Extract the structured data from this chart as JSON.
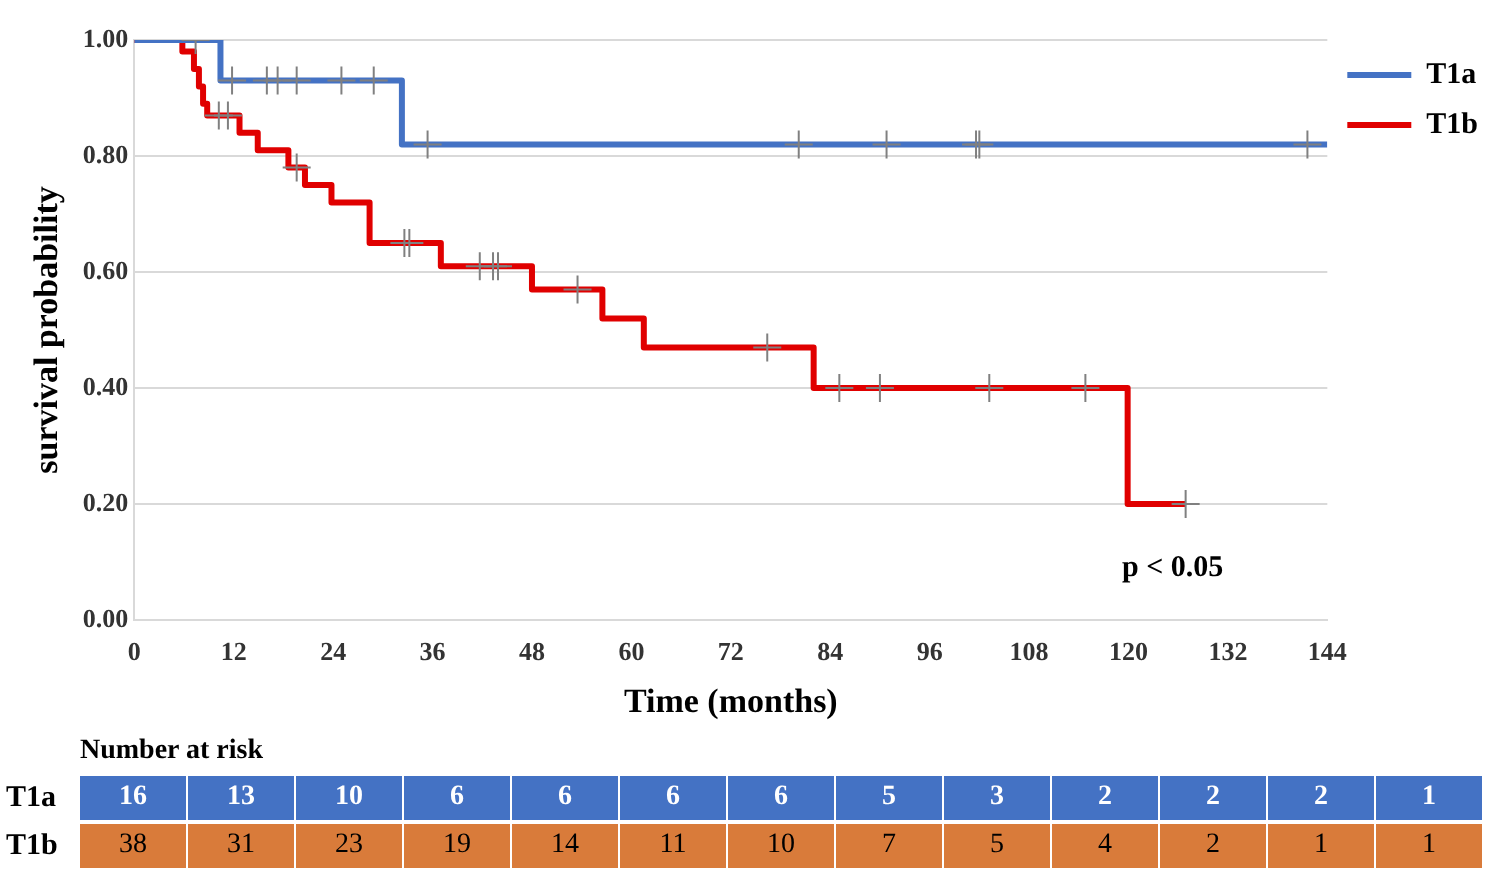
{
  "chart_data": [
    {
      "type": "step",
      "xlabel": "Time (months)",
      "ylabel": "survival probability",
      "xlim": [
        0,
        144
      ],
      "xticks": [
        0,
        12,
        24,
        36,
        48,
        60,
        72,
        84,
        96,
        108,
        120,
        132,
        144
      ],
      "ylim": [
        0,
        1
      ],
      "yticks": [
        {
          "value": 0,
          "label": "0.00"
        },
        {
          "value": 0.2,
          "label": "0.20"
        },
        {
          "value": 0.4,
          "label": "0.40"
        },
        {
          "value": 0.6,
          "label": "0.60"
        },
        {
          "value": 0.8,
          "label": "0.80"
        },
        {
          "value": 1,
          "label": "1.00"
        }
      ],
      "grid": "y",
      "legend": "top right",
      "annotations": [
        "p < 0.05"
      ],
      "series": [
        {
          "name": "T1a",
          "color": "#4472c4",
          "x": [
            0,
            10.4,
            32.3,
            144
          ],
          "values": [
            1,
            0.93,
            0.82,
            0.82
          ]
        },
        {
          "name": "T1b",
          "color": "#e00000",
          "x": [
            0,
            5.8,
            7.2,
            7.8,
            8.3,
            8.8,
            12.7,
            14.9,
            18.6,
            20.6,
            23.8,
            28.4,
            37.0,
            48.0,
            56.5,
            61.5,
            82.0,
            119.9,
            126.9
          ],
          "values": [
            1,
            0.98,
            0.95,
            0.92,
            0.89,
            0.87,
            0.84,
            0.81,
            0.78,
            0.75,
            0.72,
            0.65,
            0.61,
            0.57,
            0.52,
            0.47,
            0.4,
            0.2,
            0.2
          ]
        },
        {
          "type": "scatter",
          "marker": "cross",
          "color": "#808080",
          "x": [
            7.4,
            11.8,
            16.0,
            17.3,
            19.6,
            25.0,
            28.9,
            35.4,
            80.2,
            90.8,
            101.6,
            102.0,
            141.6
          ],
          "values": [
            1,
            0.93,
            0.93,
            0.93,
            0.93,
            0.93,
            0.93,
            0.82,
            0.82,
            0.82,
            0.82,
            0.82,
            0.82
          ]
        },
        {
          "type": "scatter",
          "marker": "cross",
          "color": "#808080",
          "x": [
            10.2,
            11.3,
            19.6,
            32.6,
            33.2,
            41.7,
            43.3,
            43.9,
            53.5,
            76.4,
            85.1,
            90.0,
            103.2,
            114.8,
            126.9
          ],
          "values": [
            0.87,
            0.87,
            0.78,
            0.65,
            0.65,
            0.61,
            0.61,
            0.61,
            0.57,
            0.47,
            0.4,
            0.4,
            0.4,
            0.4,
            0.2
          ]
        }
      ]
    },
    {
      "type": "heatmap",
      "title": "Number at risk",
      "data_labels": true,
      "y_categories": [
        "T1a",
        "T1b"
      ],
      "colors": [
        "#4472c4",
        "#d97b3a"
      ],
      "categories": [
        null,
        null,
        null,
        null,
        null,
        null,
        null,
        null,
        null,
        null,
        null,
        null,
        null
      ],
      "cells": [
        [
          16,
          13,
          10,
          6,
          6,
          6,
          6,
          5,
          3,
          2,
          2,
          2,
          1
        ],
        [
          38,
          31,
          23,
          19,
          14,
          11,
          10,
          7,
          5,
          4,
          2,
          1,
          1
        ]
      ]
    }
  ]
}
